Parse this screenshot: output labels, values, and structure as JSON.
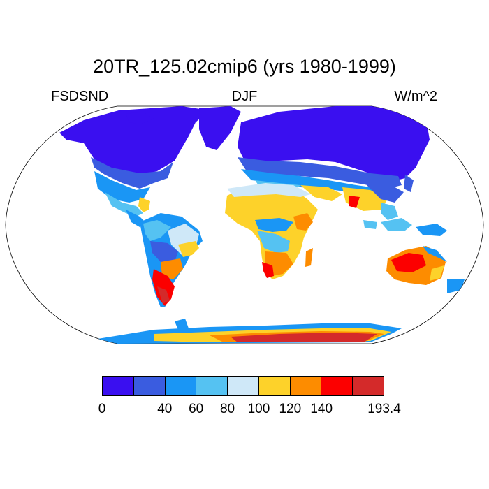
{
  "title": "20TR_125.02cmip6 (yrs 1980-1999)",
  "left_label": "FSDSND",
  "center_label": "DJF",
  "right_label": "W/m^2",
  "colorbar": {
    "colors": [
      "#3a0ff0",
      "#3a5ce0",
      "#1a96f5",
      "#55c2f2",
      "#cfe8f8",
      "#fdd22a",
      "#fd8c00",
      "#fc0000",
      "#d42a2a"
    ],
    "tick_labels": [
      "0",
      "40",
      "60",
      "80",
      "100",
      "120",
      "140",
      "193.4"
    ],
    "tick_boundaries": [
      0,
      2,
      3,
      4,
      5,
      6,
      7,
      9
    ]
  },
  "map": {
    "projection": "robinson",
    "ocean_color": "#ffffff",
    "coastline_color": "#000000"
  }
}
